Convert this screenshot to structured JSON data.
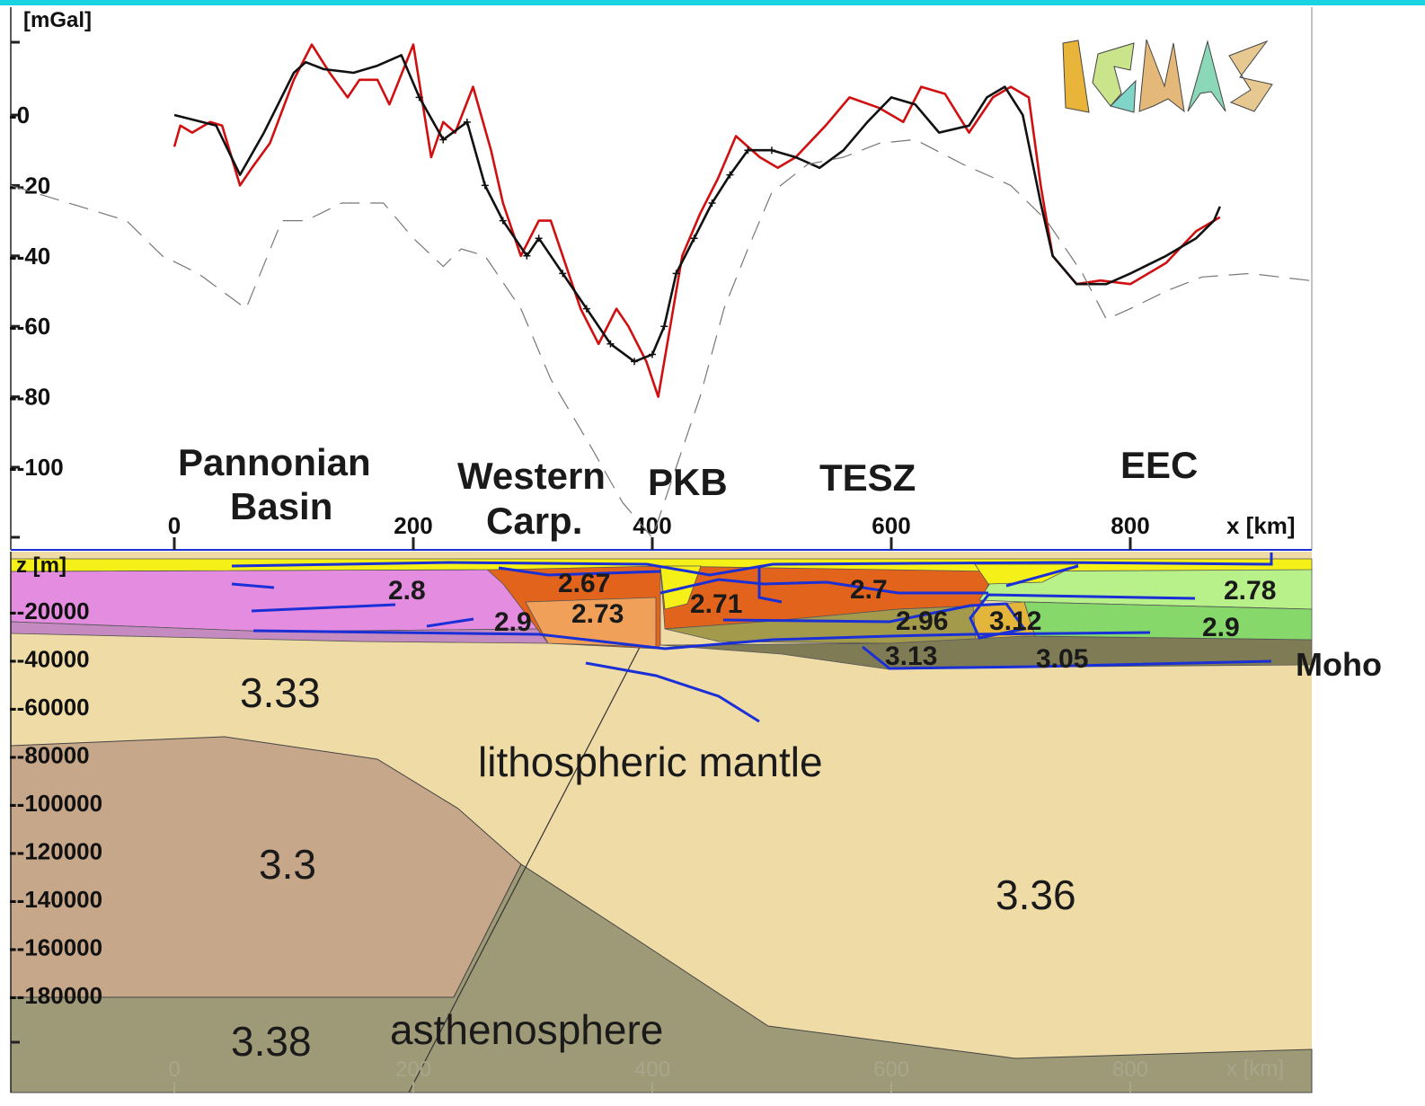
{
  "chart_data": [
    {
      "type": "line",
      "ylabel": "[mGal]",
      "xlabel": "x [km]",
      "logo": "IGMAS",
      "xlim": [
        -70,
        950
      ],
      "ylim": [
        -120,
        28
      ],
      "y_ticks": [
        0,
        -20,
        -40,
        -60,
        -80,
        -100
      ],
      "y_tick_labels": [
        "-0",
        "--20",
        "--40",
        "--60",
        "--80",
        "--100"
      ],
      "x_ticks": [
        0,
        200,
        400,
        600,
        800
      ],
      "x_tick_labels": [
        "0",
        "200",
        "400",
        "600",
        "800"
      ],
      "region_labels": [
        "Pannonian",
        "Basin",
        "Western",
        "Carp.",
        "PKB",
        "TESZ",
        "EEC"
      ],
      "series": [
        {
          "color": "#d01010",
          "x": [
            0,
            5,
            15,
            30,
            40,
            55,
            65,
            80,
            100,
            115,
            130,
            145,
            155,
            170,
            180,
            200,
            215,
            225,
            235,
            250,
            265,
            275,
            290,
            305,
            315,
            330,
            340,
            355,
            370,
            380,
            395,
            405,
            415,
            425,
            440,
            455,
            470,
            490,
            505,
            520,
            545,
            565,
            590,
            610,
            625,
            645,
            665,
            685,
            700,
            715,
            725,
            735,
            755,
            775,
            800,
            830,
            855,
            875
          ],
          "y": [
            -9,
            -3,
            -5,
            -2,
            -3,
            -20,
            -15,
            -8,
            10,
            20,
            12,
            5,
            10,
            10,
            3,
            20,
            -12,
            -2,
            -5,
            8,
            -10,
            -25,
            -40,
            -30,
            -30,
            -45,
            -55,
            -65,
            -55,
            -60,
            -70,
            -80,
            -60,
            -40,
            -28,
            -18,
            -6,
            -12,
            -15,
            -12,
            -3,
            5,
            2,
            -2,
            8,
            6,
            -5,
            5,
            8,
            5,
            -20,
            -40,
            -48,
            -47,
            -48,
            -42,
            -33,
            -29
          ]
        },
        {
          "color": "#111111",
          "x": [
            0,
            35,
            55,
            75,
            100,
            110,
            125,
            150,
            170,
            190,
            205,
            225,
            245,
            260,
            275,
            295,
            305,
            325,
            345,
            365,
            385,
            400,
            410,
            420,
            435,
            450,
            465,
            480,
            500,
            520,
            540,
            560,
            580,
            600,
            620,
            640,
            665,
            680,
            695,
            710,
            725,
            735,
            755,
            780,
            800,
            830,
            855,
            870,
            875
          ],
          "y": [
            0,
            -3,
            -17,
            -5,
            12,
            15,
            13,
            12,
            14,
            17,
            5,
            -7,
            -2,
            -20,
            -30,
            -40,
            -35,
            -45,
            -55,
            -65,
            -70,
            -68,
            -60,
            -45,
            -35,
            -25,
            -17,
            -10,
            -10,
            -12,
            -15,
            -10,
            -2,
            5,
            3,
            -5,
            -3,
            5,
            8,
            0,
            -25,
            -40,
            -48,
            -48,
            -45,
            -40,
            -35,
            -30,
            -26
          ]
        },
        {
          "color": "#777777",
          "dashed": true,
          "x": [
            -140,
            -40,
            -10,
            20,
            60,
            90,
            110,
            140,
            175,
            200,
            225,
            240,
            260,
            290,
            315,
            350,
            375,
            400,
            420,
            440,
            460,
            480,
            500,
            530,
            560,
            590,
            620,
            660,
            700,
            730,
            760,
            780,
            800,
            830,
            860,
            900,
            950
          ],
          "y": [
            -20,
            -30,
            -40,
            -45,
            -55,
            -30,
            -30,
            -25,
            -25,
            -35,
            -43,
            -38,
            -40,
            -55,
            -75,
            -95,
            -110,
            -120,
            -100,
            -80,
            -55,
            -38,
            -22,
            -14,
            -12,
            -8,
            -7,
            -14,
            -20,
            -30,
            -45,
            -58,
            -55,
            -50,
            -46,
            -45,
            -47
          ]
        }
      ]
    },
    {
      "type": "area",
      "ylabel": "z [m]",
      "xlabel": "x [km]",
      "y_tick_labels": [
        "--20000",
        "--40000",
        "--60000",
        "--80000",
        "--100000",
        "--120000",
        "--140000",
        "--160000",
        "--180000"
      ],
      "x_tick_labels": [
        "0",
        "200",
        "400",
        "600",
        "800"
      ],
      "density_labels": [
        "2.8",
        "2.67",
        "2.73",
        "2.9",
        "2.71",
        "2.7",
        "2.96",
        "3.12",
        "2.78",
        "2.9",
        "3.13",
        "3.05",
        "3.33",
        "3.3",
        "3.36",
        "3.38"
      ],
      "layer_labels": [
        "Moho",
        "lithospheric mantle",
        "asthenosphere"
      ],
      "colors": {
        "lithospheric_mantle": "#efdba6",
        "lower_lithosphere_body": "#c6a789",
        "asthenosphere": "#9e9a78",
        "pannonian_crust": "#e38ce0",
        "lower_crust_pannonian": "#c58ac0",
        "carpathian_orange": "#e2641c",
        "carpathian_light": "#f0a058",
        "sediments": "#f4f018",
        "eec_upper": "#b8f08a",
        "eec_middle": "#86d86a",
        "tesz_lower": "#a39a4c",
        "lower_crust_east": "#7e7b55",
        "interpretation_lines": "#1a2fd6"
      }
    }
  ]
}
